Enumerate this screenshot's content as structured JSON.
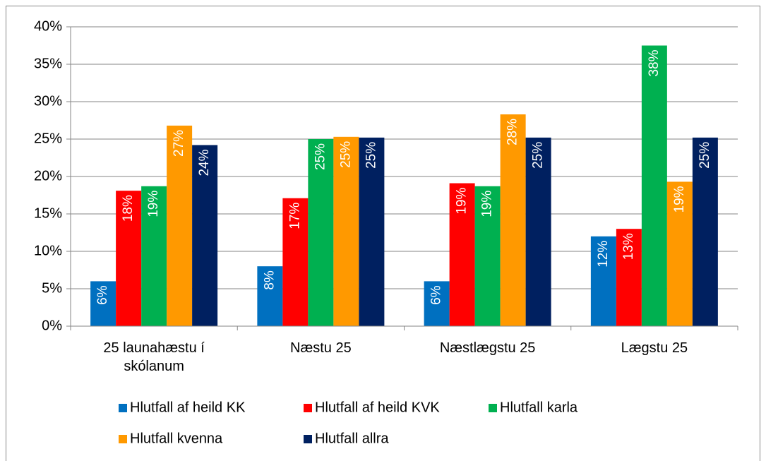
{
  "chart_data": {
    "type": "bar",
    "categories": [
      "25 launahæstu í skólanum",
      "Næstu 25",
      "Næstlægstu 25",
      "Lægstu 25"
    ],
    "series": [
      {
        "name": "Hlutfall af heild KK",
        "color": "#0070c0",
        "values": [
          6.0,
          8.0,
          6.0,
          12.0
        ],
        "value_labels": [
          "6%",
          "8%",
          "6%",
          "12%"
        ]
      },
      {
        "name": "Hlutfall af heild KVK",
        "color": "#ff0000",
        "values": [
          18.1,
          17.1,
          19.1,
          13.0
        ],
        "value_labels": [
          "18%",
          "17%",
          "19%",
          "13%"
        ]
      },
      {
        "name": "Hlutfall karla",
        "color": "#00b050",
        "values": [
          18.7,
          25.0,
          18.7,
          37.5
        ],
        "value_labels": [
          "19%",
          "25%",
          "19%",
          "38%"
        ]
      },
      {
        "name": "Hlutfall kvenna",
        "color": "#ff9900",
        "values": [
          26.8,
          25.3,
          28.3,
          19.3
        ],
        "value_labels": [
          "27%",
          "25%",
          "28%",
          "19%"
        ]
      },
      {
        "name": "Hlutfall allra",
        "color": "#002060",
        "values": [
          24.2,
          25.2,
          25.2,
          25.2
        ],
        "value_labels": [
          "24%",
          "25%",
          "25%",
          "25%"
        ]
      }
    ],
    "ylim": [
      0,
      40
    ],
    "yticks": [
      {
        "value": 0,
        "label": "0%"
      },
      {
        "value": 5,
        "label": "5%"
      },
      {
        "value": 10,
        "label": "10%"
      },
      {
        "value": 15,
        "label": "15%"
      },
      {
        "value": 20,
        "label": "20%"
      },
      {
        "value": 25,
        "label": "25%"
      },
      {
        "value": 30,
        "label": "30%"
      },
      {
        "value": 35,
        "label": "35%"
      },
      {
        "value": 40,
        "label": "40%"
      }
    ],
    "grid": true,
    "legend": "bottom"
  }
}
